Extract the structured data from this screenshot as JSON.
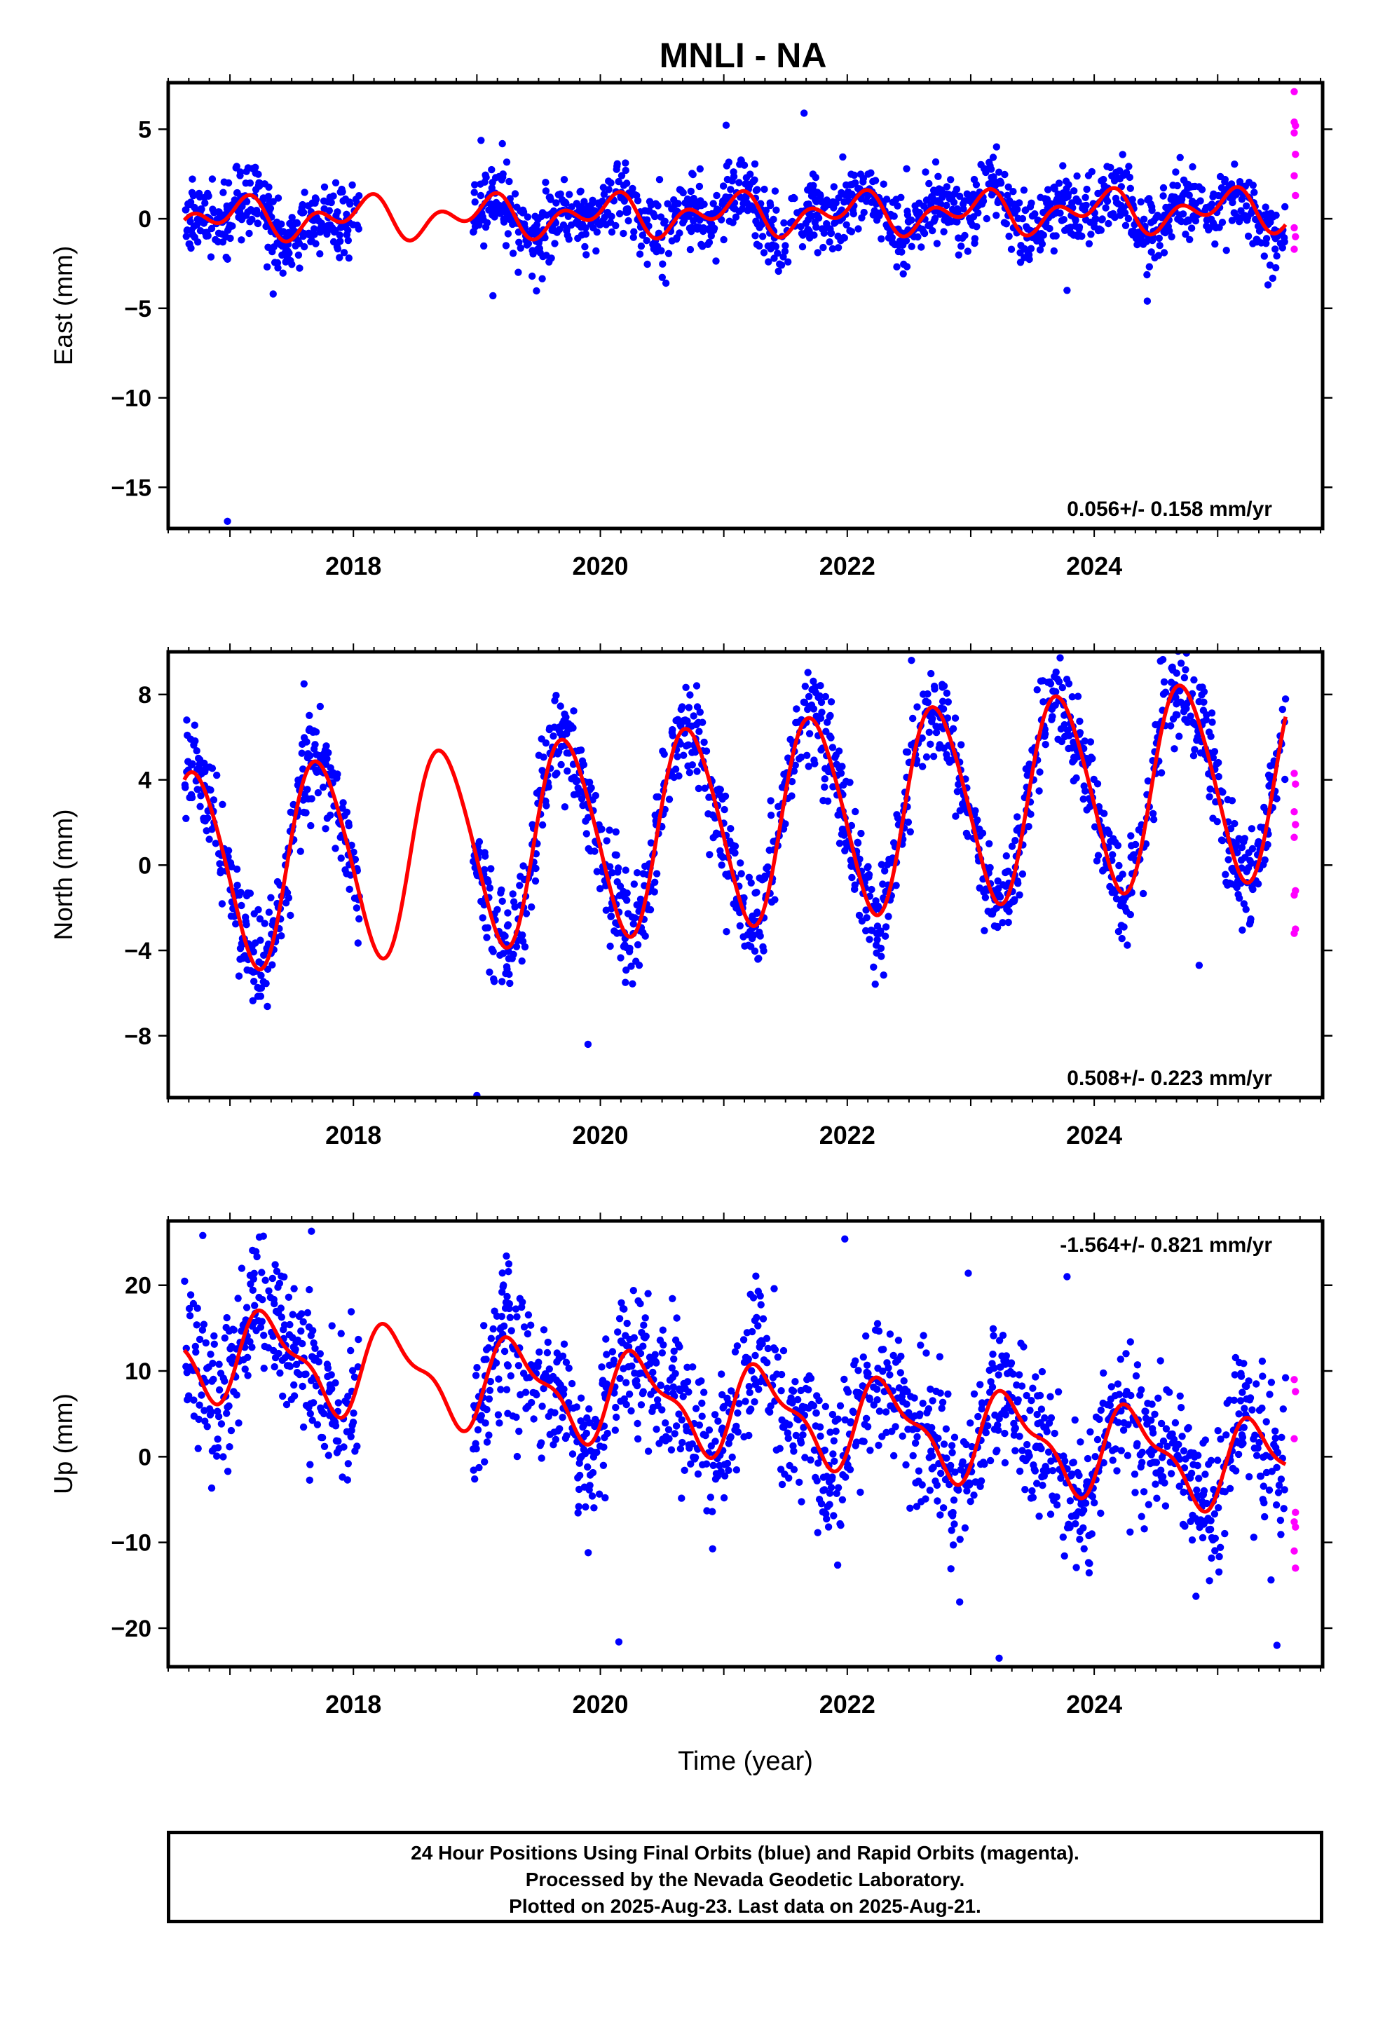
{
  "title": "MNLI - NA",
  "colors": {
    "final": "#0000ff",
    "rapid": "#ff00ff",
    "model": "#ff0000",
    "frame": "#000000"
  },
  "footer": {
    "line1": "24 Hour Positions Using Final Orbits (blue) and Rapid Orbits (magenta).",
    "line2": "Processed by the Nevada Geodetic Laboratory.",
    "line3": "Plotted on 2025-Aug-23. Last data on 2025-Aug-21."
  },
  "chart_data": [
    {
      "type": "scatter",
      "ylabel": "East (mm)",
      "rate": "0.056+/- 0.158 mm/yr",
      "rate_position": "bottom-right",
      "xlim": [
        2016.5,
        2025.85
      ],
      "ylim": [
        -17.3,
        7.6
      ],
      "yticks": [
        5,
        0,
        -5,
        -10,
        -15
      ],
      "xticks": [
        2018,
        2020,
        2022,
        2024
      ],
      "data_start": 2016.63,
      "data_end": 2025.55,
      "gap": [
        2018.05,
        2018.97
      ],
      "model": {
        "offset": 0.0,
        "trend": 0.056,
        "annual_sin": 0.25,
        "annual_cos": 0.7,
        "semi_sin": 0.55,
        "semi_cos": -0.5
      },
      "scatter_sd": 1.0,
      "seed": 11,
      "outliers": [
        {
          "x": 2016.98,
          "y": -16.9
        },
        {
          "x": 2017.35,
          "y": -4.2
        },
        {
          "x": 2019.13,
          "y": -4.3
        },
        {
          "x": 2021.65,
          "y": 5.9
        },
        {
          "x": 2023.78,
          "y": -4.0
        },
        {
          "x": 2024.43,
          "y": -4.6
        }
      ],
      "rapid_points": [
        {
          "x": 2025.62,
          "y": 7.1
        },
        {
          "x": 2025.62,
          "y": 5.4
        },
        {
          "x": 2025.63,
          "y": 5.2
        },
        {
          "x": 2025.62,
          "y": 4.8
        },
        {
          "x": 2025.63,
          "y": 3.6
        },
        {
          "x": 2025.62,
          "y": 2.4
        },
        {
          "x": 2025.63,
          "y": 1.3
        },
        {
          "x": 2025.62,
          "y": -0.5
        },
        {
          "x": 2025.63,
          "y": -1.0
        },
        {
          "x": 2025.62,
          "y": -1.7
        }
      ]
    },
    {
      "type": "scatter",
      "ylabel": "North (mm)",
      "rate": "0.508+/- 0.223 mm/yr",
      "rate_position": "bottom-right",
      "xlim": [
        2016.5,
        2025.85
      ],
      "ylim": [
        -10.9,
        10.0
      ],
      "yticks": [
        8,
        4,
        0,
        -4,
        -8
      ],
      "xticks": [
        2018,
        2020,
        2022,
        2024
      ],
      "data_start": 2016.63,
      "data_end": 2025.55,
      "gap": [
        2018.05,
        2018.97
      ],
      "model": {
        "offset": -0.3,
        "trend": 0.508,
        "annual_sin": -4.6,
        "annual_cos": -0.9,
        "semi_sin": 0.35,
        "semi_cos": 0.3
      },
      "scatter_sd": 1.15,
      "seed": 23,
      "outliers": [
        {
          "x": 2016.65,
          "y": 6.8
        },
        {
          "x": 2017.6,
          "y": 8.5
        },
        {
          "x": 2019.0,
          "y": -10.8
        },
        {
          "x": 2019.9,
          "y": -8.4
        },
        {
          "x": 2022.52,
          "y": 9.6
        },
        {
          "x": 2024.85,
          "y": -4.7
        }
      ],
      "rapid_points": [
        {
          "x": 2025.62,
          "y": 4.3
        },
        {
          "x": 2025.63,
          "y": 3.8
        },
        {
          "x": 2025.62,
          "y": 2.5
        },
        {
          "x": 2025.63,
          "y": 1.9
        },
        {
          "x": 2025.62,
          "y": 1.3
        },
        {
          "x": 2025.63,
          "y": -1.2
        },
        {
          "x": 2025.62,
          "y": -1.4
        },
        {
          "x": 2025.63,
          "y": -3.0
        },
        {
          "x": 2025.62,
          "y": -3.2
        }
      ]
    },
    {
      "type": "scatter",
      "ylabel": "Up (mm)",
      "rate": "-1.564+/- 0.821 mm/yr",
      "rate_position": "top-right",
      "xlim": [
        2016.5,
        2025.85
      ],
      "ylim": [
        -24.5,
        27.5
      ],
      "yticks": [
        20,
        10,
        0,
        -10,
        -20
      ],
      "xticks": [
        2018,
        2020,
        2022,
        2024
      ],
      "xlabel": "Time (year)",
      "data_start": 2016.63,
      "data_end": 2025.55,
      "gap": [
        2018.05,
        2018.97
      ],
      "model": {
        "offset": 12.5,
        "trend": -1.564,
        "annual_sin": 4.2,
        "annual_cos": -2.2,
        "semi_sin": 1.4,
        "semi_cos": -1.3
      },
      "scatter_sd": 4.3,
      "seed": 37,
      "outliers": [
        {
          "x": 2016.78,
          "y": 25.8
        },
        {
          "x": 2017.66,
          "y": 26.3
        },
        {
          "x": 2020.15,
          "y": -21.6
        },
        {
          "x": 2021.98,
          "y": 25.4
        },
        {
          "x": 2022.98,
          "y": 21.4
        },
        {
          "x": 2023.23,
          "y": -23.5
        },
        {
          "x": 2023.78,
          "y": 21.0
        },
        {
          "x": 2025.48,
          "y": -22.0
        }
      ],
      "rapid_points": [
        {
          "x": 2025.62,
          "y": 9.0
        },
        {
          "x": 2025.63,
          "y": 7.6
        },
        {
          "x": 2025.62,
          "y": 2.1
        },
        {
          "x": 2025.63,
          "y": -6.5
        },
        {
          "x": 2025.62,
          "y": -7.6
        },
        {
          "x": 2025.63,
          "y": -8.2
        },
        {
          "x": 2025.62,
          "y": -11.0
        },
        {
          "x": 2025.63,
          "y": -13.0
        }
      ]
    }
  ]
}
